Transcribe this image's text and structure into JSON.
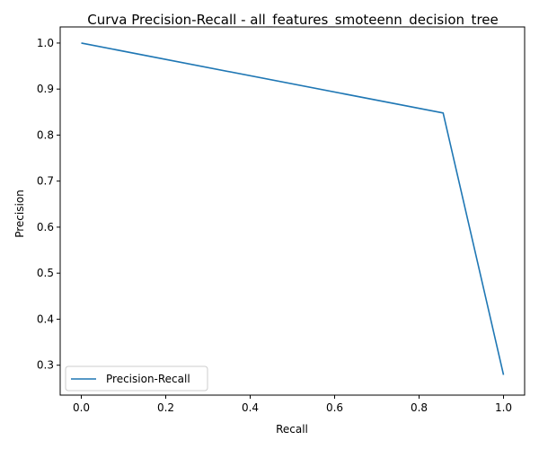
{
  "chart_data": {
    "type": "line",
    "title": "Curva Precision-Recall - all_features_smoteenn_decision_tree",
    "xlabel": "Recall",
    "ylabel": "Precision",
    "xlim": [
      -0.05,
      1.05
    ],
    "ylim": [
      0.235,
      1.035
    ],
    "x_ticks": [
      0.0,
      0.2,
      0.4,
      0.6,
      0.8,
      1.0
    ],
    "x_tick_labels": [
      "0.0",
      "0.2",
      "0.4",
      "0.6",
      "0.8",
      "1.0"
    ],
    "y_ticks": [
      0.3,
      0.4,
      0.5,
      0.6,
      0.7,
      0.8,
      0.9,
      1.0
    ],
    "y_tick_labels": [
      "0.3",
      "0.4",
      "0.5",
      "0.6",
      "0.7",
      "0.8",
      "0.9",
      "1.0"
    ],
    "grid": false,
    "legend_position": "lower-left",
    "series": [
      {
        "name": "Precision-Recall",
        "color": "#1f77b4",
        "x": [
          0.0,
          0.857,
          1.0
        ],
        "y": [
          1.0,
          0.848,
          0.279
        ]
      }
    ]
  }
}
